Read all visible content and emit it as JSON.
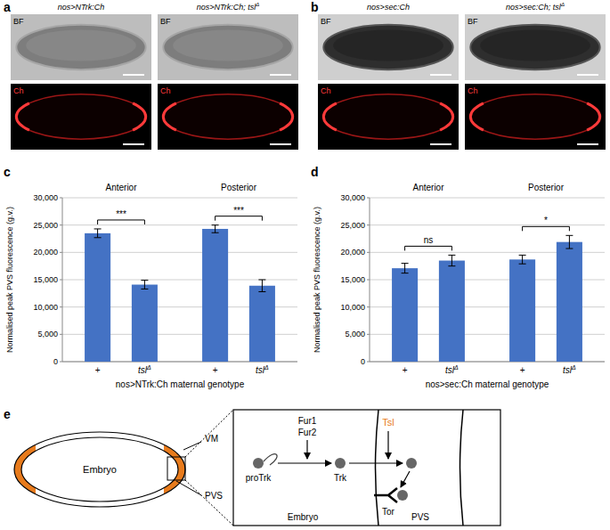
{
  "images": [
    {
      "panel_label": "a",
      "captions": [
        "nos>NTrk:Ch",
        "nos>NTrk:Ch; tslΔ"
      ],
      "channels": [
        "BF",
        "Ch"
      ]
    },
    {
      "panel_label": "b",
      "captions": [
        "nos>sec:Ch",
        "nos>sec:Ch; tslΔ"
      ],
      "channels": [
        "BF",
        "Ch"
      ]
    }
  ],
  "chart_data": [
    {
      "type": "bar",
      "panel_label": "c",
      "categories": [
        "+",
        "tslΔ",
        "+",
        "tslΔ"
      ],
      "group_labels": [
        "Anterior",
        "Posterior"
      ],
      "values": [
        23500,
        14100,
        24300,
        13900
      ],
      "errors": [
        800,
        800,
        700,
        1100
      ],
      "annotations": [
        "***",
        "***"
      ],
      "color": "#4472c4",
      "x_label": "nos>NTrk:Ch maternal genotype",
      "y_label": "Normalised peak PVS fluorescence (g.v.)",
      "ylim": [
        0,
        30000
      ],
      "yticks": [
        0,
        {
          "value": 5000,
          "label": "5,000"
        },
        {
          "value": 10000,
          "label": "10,000"
        },
        {
          "value": 15000,
          "label": "15,000"
        },
        {
          "value": 20000,
          "label": "20,000"
        },
        {
          "value": 25000,
          "label": "25,000"
        },
        {
          "value": 30000,
          "label": "30,000"
        }
      ],
      "grid": true
    },
    {
      "type": "bar",
      "panel_label": "d",
      "categories": [
        "+",
        "tslΔ",
        "+",
        "tslΔ"
      ],
      "group_labels": [
        "Anterior",
        "Posterior"
      ],
      "values": [
        17100,
        18500,
        18700,
        21900
      ],
      "errors": [
        900,
        1000,
        800,
        1200
      ],
      "annotations": [
        "ns",
        "*"
      ],
      "color": "#4472c4",
      "x_label": "nos>sec:Ch maternal genotype",
      "y_label": "Normalised peak PVS fluorescence (g.v.)",
      "ylim": [
        0,
        30000
      ],
      "yticks": [
        0,
        {
          "value": 5000,
          "label": "5,000"
        },
        {
          "value": 10000,
          "label": "10,000"
        },
        {
          "value": 15000,
          "label": "15,000"
        },
        {
          "value": 20000,
          "label": "20,000"
        },
        {
          "value": 25000,
          "label": "25,000"
        },
        {
          "value": 30000,
          "label": "30,000"
        }
      ],
      "grid": true
    }
  ],
  "diagram": {
    "panel_label": "e",
    "embryo_labels": {
      "embryo": "Embryo",
      "vm": "VM",
      "pvs": "PVS"
    },
    "inset": {
      "proenzyme": "proTrk",
      "convertases": [
        "Fur1",
        "Fur2"
      ],
      "ligand": "Trk",
      "protease": "Tsl",
      "receptor": "Tor",
      "compartments": [
        "Embryo",
        "PVS"
      ]
    }
  }
}
